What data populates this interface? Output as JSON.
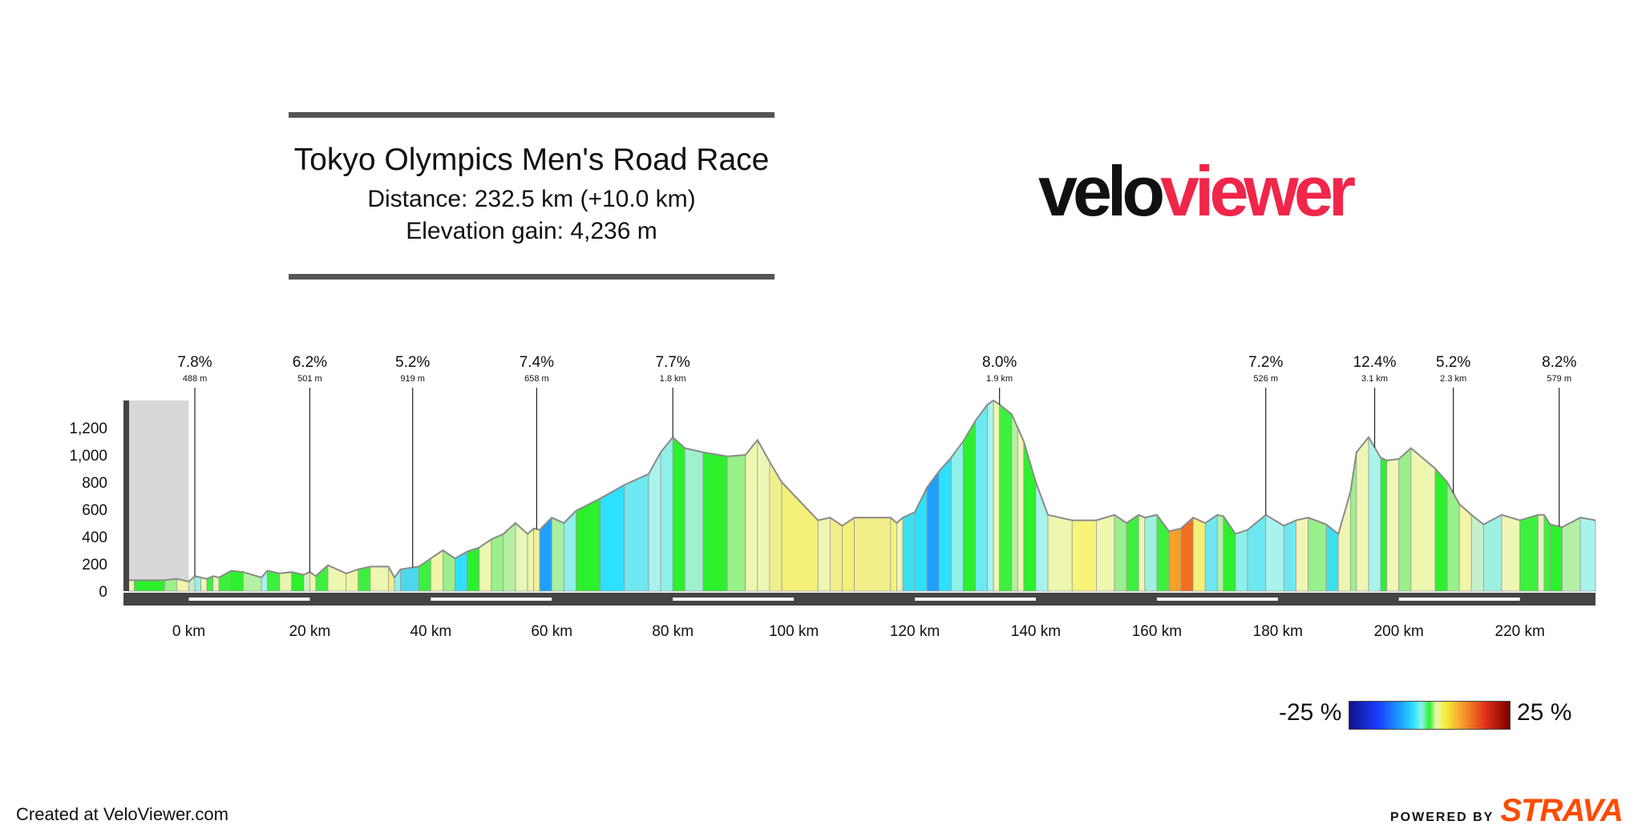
{
  "header": {
    "title": "Tokyo Olympics Men's Road Race",
    "distance": "Distance: 232.5 km (+10.0 km)",
    "elevation_gain": "Elevation gain: 4,236 m"
  },
  "logo": {
    "part1": "velo",
    "part2": "viewer",
    "part1_color": "#111111",
    "part2_color": "#f0264a"
  },
  "legend": {
    "min_label": "-25 %",
    "max_label": "25 %"
  },
  "footer": {
    "created": "Created at VeloViewer.com",
    "powered_by": "POWERED BY",
    "brand": "STRAVA",
    "brand_color": "#fc4c02"
  },
  "chart_data": {
    "type": "area",
    "x_unit": "km",
    "y_unit": "m",
    "xlim": [
      -10,
      232.5
    ],
    "ylim": [
      0,
      1400
    ],
    "x_ticks": [
      0,
      20,
      40,
      60,
      80,
      100,
      120,
      140,
      160,
      180,
      200,
      220
    ],
    "x_tick_labels": [
      "0 km",
      "20 km",
      "40 km",
      "60 km",
      "80 km",
      "100 km",
      "120 km",
      "140 km",
      "160 km",
      "180 km",
      "200 km",
      "220 km"
    ],
    "y_ticks": [
      0,
      200,
      400,
      600,
      800,
      1000,
      1200
    ],
    "y_tick_labels": [
      "0",
      "200",
      "400",
      "600",
      "800",
      "1,000",
      "1,200"
    ],
    "neutral_zone": [
      -10,
      0
    ],
    "profile_x": [
      -10,
      -9,
      -4,
      -2,
      0,
      1,
      2,
      3,
      4,
      5,
      7,
      9,
      12,
      13,
      15,
      17,
      19,
      20,
      21,
      23,
      26,
      28,
      30,
      33,
      34,
      35,
      38,
      40,
      42,
      44,
      46,
      48,
      50,
      52,
      54,
      56,
      57,
      58,
      60,
      62,
      64,
      68,
      72,
      76,
      78,
      80,
      82,
      85,
      89,
      92,
      94,
      96,
      98,
      104,
      106,
      108,
      110,
      116,
      117,
      118,
      120,
      122,
      124,
      126,
      128,
      130,
      132,
      133,
      134,
      136,
      137,
      138,
      140,
      142,
      146,
      150,
      153,
      155,
      157,
      158,
      160,
      162,
      164,
      166,
      168,
      170,
      171,
      173,
      175,
      178,
      181,
      183,
      185,
      188,
      190,
      192,
      193,
      195,
      197,
      198,
      200,
      202,
      206,
      208,
      210,
      212,
      214,
      217,
      220,
      223,
      224,
      225,
      227,
      230,
      232.5
    ],
    "profile_y": [
      80,
      80,
      80,
      90,
      70,
      110,
      100,
      90,
      110,
      100,
      150,
      140,
      100,
      150,
      130,
      140,
      120,
      140,
      110,
      190,
      130,
      160,
      180,
      180,
      100,
      160,
      180,
      240,
      300,
      240,
      290,
      320,
      380,
      420,
      500,
      420,
      460,
      450,
      540,
      500,
      590,
      680,
      780,
      860,
      1020,
      1130,
      1050,
      1020,
      990,
      1000,
      1110,
      950,
      800,
      520,
      540,
      480,
      540,
      540,
      500,
      540,
      580,
      760,
      880,
      980,
      1100,
      1250,
      1370,
      1400,
      1370,
      1300,
      1200,
      1100,
      800,
      560,
      520,
      520,
      560,
      500,
      560,
      540,
      560,
      440,
      460,
      540,
      500,
      560,
      550,
      420,
      450,
      560,
      480,
      520,
      540,
      490,
      420,
      730,
      1020,
      1130,
      980,
      960,
      970,
      1050,
      900,
      800,
      640,
      560,
      490,
      560,
      520,
      560,
      560,
      490,
      470,
      540,
      520
    ],
    "segment_colors": [
      "#eef7b0",
      "#2df02d",
      "#9af08a",
      "#f0f5a8",
      "#c4f0ca",
      "#9ef0e0",
      "#f0f6b5",
      "#3ef03e",
      "#e4f5b8",
      "#3ef03e",
      "#2df02d",
      "#b4f0a4",
      "#a8f4ec",
      "#3ef03e",
      "#e6f6b0",
      "#2df02d",
      "#d2f2c0",
      "#eef7b0",
      "#3ef03e",
      "#eef7b0",
      "#f0f6a8",
      "#3ef03e",
      "#eef7b0",
      "#f2ee8a",
      "#8ef0e8",
      "#4dd8f0",
      "#3ef03e",
      "#f0f6a8",
      "#9af08a",
      "#2ee0ff",
      "#2df02d",
      "#eef7b0",
      "#9af08a",
      "#b4f0a4",
      "#e6f7b8",
      "#eef7b0",
      "#f2f09a",
      "#1ea0ff",
      "#a8f0a0",
      "#8ef0e8",
      "#2df02d",
      "#2ee0ff",
      "#6ee8f0",
      "#a8f4ec",
      "#8ef0e8",
      "#2df02d",
      "#a0f0d0",
      "#2df02d",
      "#9af08a",
      "#eef7b0",
      "#f0f6b5",
      "#f0f090",
      "#f5f077",
      "#eef7b0",
      "#f2ee8a",
      "#f5f077",
      "#f2ee8a",
      "#f7f47a",
      "#eef7b0",
      "#3ee0f0",
      "#2ee0ff",
      "#1ea0ff",
      "#2ee0ff",
      "#8ef0e8",
      "#2df02d",
      "#6ee8f0",
      "#a8f4ec",
      "#eef7b0",
      "#3ef03e",
      "#b4f0a4",
      "#f0f6b5",
      "#2df02d",
      "#a8f4ec",
      "#eef7b0",
      "#f7f47a",
      "#eef7b0",
      "#9af08a",
      "#3ef03e",
      "#eef7b0",
      "#9ef0e0",
      "#3ef03e",
      "#f5a02a",
      "#f07020",
      "#f5f077",
      "#6ee8f0",
      "#b4f0a4",
      "#2df02d",
      "#8ef0e8",
      "#6ee8f0",
      "#a8f4ec",
      "#6ee8f0",
      "#f0f6b5",
      "#9af08a",
      "#3ee0f0",
      "#eef7b0",
      "#9af08a",
      "#f0f6b5",
      "#a8f4ec",
      "#2df02d",
      "#f0f6b5",
      "#9af08a"
    ],
    "climbs": [
      {
        "km": 1,
        "gradient": "7.8%",
        "length": "488 m"
      },
      {
        "km": 20,
        "gradient": "6.2%",
        "length": "501 m"
      },
      {
        "km": 37,
        "gradient": "5.2%",
        "length": "919 m"
      },
      {
        "km": 57.5,
        "gradient": "7.4%",
        "length": "658 m"
      },
      {
        "km": 80,
        "gradient": "7.7%",
        "length": "1.8 km"
      },
      {
        "km": 134,
        "gradient": "8.0%",
        "length": "1.9 km"
      },
      {
        "km": 178,
        "gradient": "7.2%",
        "length": "526 m"
      },
      {
        "km": 196,
        "gradient": "12.4%",
        "length": "3.1 km"
      },
      {
        "km": 209,
        "gradient": "5.2%",
        "length": "2.3 km"
      },
      {
        "km": 226.5,
        "gradient": "8.2%",
        "length": "579 m"
      }
    ]
  }
}
